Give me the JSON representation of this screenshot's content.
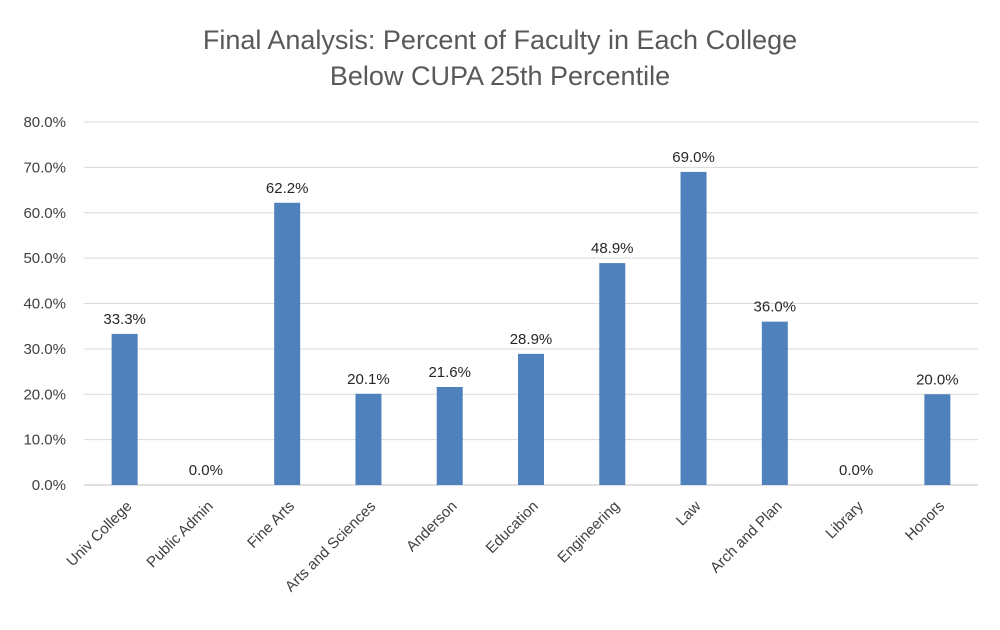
{
  "chart_data": {
    "type": "bar",
    "title": "Final Analysis: Percent of Faculty in Each College",
    "subtitle": "Below CUPA 25th Percentile",
    "xlabel": "",
    "ylabel": "",
    "categories": [
      "Univ College",
      "Public Admin",
      "Fine Arts",
      "Arts and Sciences",
      "Anderson",
      "Education",
      "Engineering",
      "Law",
      "Arch and Plan",
      "Library",
      "Honors"
    ],
    "values": [
      33.3,
      0.0,
      62.2,
      20.1,
      21.6,
      28.9,
      48.9,
      69.0,
      36.0,
      0.0,
      20.0
    ],
    "value_labels": [
      "33.3%",
      "0.0%",
      "62.2%",
      "20.1%",
      "21.6%",
      "28.9%",
      "48.9%",
      "69.0%",
      "36.0%",
      "0.0%",
      "20.0%"
    ],
    "ylim": [
      0,
      80
    ],
    "yticks": [
      0,
      10,
      20,
      30,
      40,
      50,
      60,
      70,
      80
    ],
    "ytick_labels": [
      "0.0%",
      "10.0%",
      "20.0%",
      "30.0%",
      "40.0%",
      "50.0%",
      "60.0%",
      "70.0%",
      "80.0%"
    ],
    "grid": true,
    "legend": "none",
    "colors": {
      "bar": "#4f81bd",
      "grid": "#d9d9d9",
      "axis": "#bfbfbf"
    }
  }
}
